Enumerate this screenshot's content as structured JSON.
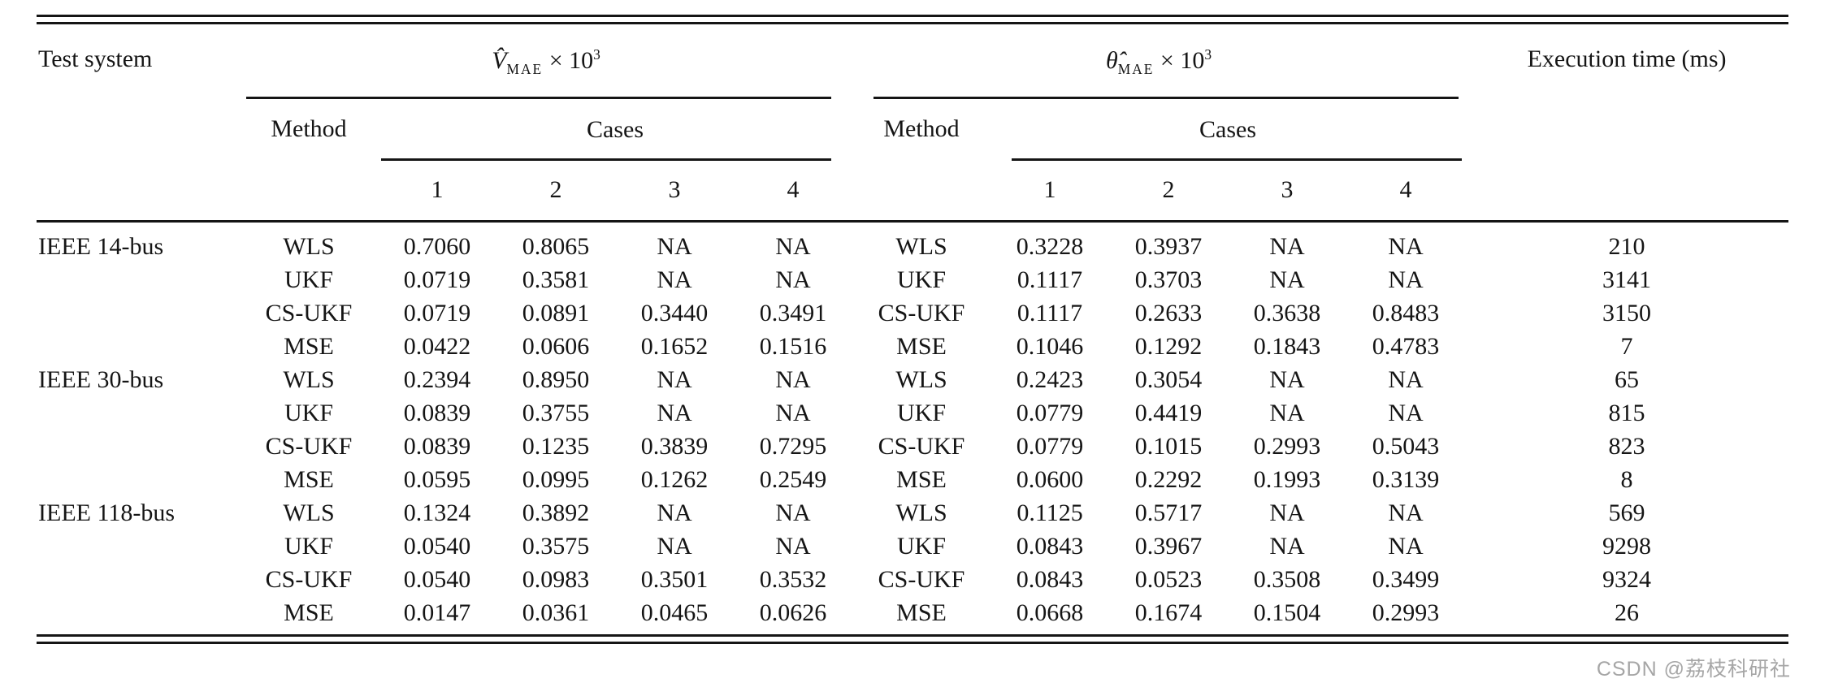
{
  "page": {
    "watermark": "CSDN @荔枝科研社"
  },
  "table": {
    "header": {
      "test_system": "Test system",
      "v_group": {
        "base": "V̂",
        "sub": "MAE",
        "times": " × 10",
        "exp": "3"
      },
      "theta_group": {
        "base": "θ̂",
        "sub": "MAE",
        "times": " × 10",
        "exp": "3"
      },
      "method": "Method",
      "cases": "Cases",
      "case_numbers": [
        "1",
        "2",
        "3",
        "4"
      ],
      "execution_time": "Execution time (ms)"
    },
    "groups": [
      {
        "system": "IEEE 14-bus",
        "rows": [
          {
            "method": "WLS",
            "v": [
              "0.7060",
              "0.8065",
              "NA",
              "NA"
            ],
            "theta": [
              "0.3228",
              "0.3937",
              "NA",
              "NA"
            ],
            "time": "210"
          },
          {
            "method": "UKF",
            "v": [
              "0.0719",
              "0.3581",
              "NA",
              "NA"
            ],
            "theta": [
              "0.1117",
              "0.3703",
              "NA",
              "NA"
            ],
            "time": "3141"
          },
          {
            "method": "CS-UKF",
            "v": [
              "0.0719",
              "0.0891",
              "0.3440",
              "0.3491"
            ],
            "theta": [
              "0.1117",
              "0.2633",
              "0.3638",
              "0.8483"
            ],
            "time": "3150"
          },
          {
            "method": "MSE",
            "v": [
              "0.0422",
              "0.0606",
              "0.1652",
              "0.1516"
            ],
            "theta": [
              "0.1046",
              "0.1292",
              "0.1843",
              "0.4783"
            ],
            "time": "7"
          }
        ]
      },
      {
        "system": "IEEE 30-bus",
        "rows": [
          {
            "method": "WLS",
            "v": [
              "0.2394",
              "0.8950",
              "NA",
              "NA"
            ],
            "theta": [
              "0.2423",
              "0.3054",
              "NA",
              "NA"
            ],
            "time": "65"
          },
          {
            "method": "UKF",
            "v": [
              "0.0839",
              "0.3755",
              "NA",
              "NA"
            ],
            "theta": [
              "0.0779",
              "0.4419",
              "NA",
              "NA"
            ],
            "time": "815"
          },
          {
            "method": "CS-UKF",
            "v": [
              "0.0839",
              "0.1235",
              "0.3839",
              "0.7295"
            ],
            "theta": [
              "0.0779",
              "0.1015",
              "0.2993",
              "0.5043"
            ],
            "time": "823"
          },
          {
            "method": "MSE",
            "v": [
              "0.0595",
              "0.0995",
              "0.1262",
              "0.2549"
            ],
            "theta": [
              "0.0600",
              "0.2292",
              "0.1993",
              "0.3139"
            ],
            "time": "8"
          }
        ]
      },
      {
        "system": "IEEE 118-bus",
        "rows": [
          {
            "method": "WLS",
            "v": [
              "0.1324",
              "0.3892",
              "NA",
              "NA"
            ],
            "theta": [
              "0.1125",
              "0.5717",
              "NA",
              "NA"
            ],
            "time": "569"
          },
          {
            "method": "UKF",
            "v": [
              "0.0540",
              "0.3575",
              "NA",
              "NA"
            ],
            "theta": [
              "0.0843",
              "0.3967",
              "NA",
              "NA"
            ],
            "time": "9298"
          },
          {
            "method": "CS-UKF",
            "v": [
              "0.0540",
              "0.0983",
              "0.3501",
              "0.3532"
            ],
            "theta": [
              "0.0843",
              "0.0523",
              "0.3508",
              "0.3499"
            ],
            "time": "9324"
          },
          {
            "method": "MSE",
            "v": [
              "0.0147",
              "0.0361",
              "0.0465",
              "0.0626"
            ],
            "theta": [
              "0.0668",
              "0.1674",
              "0.1504",
              "0.2993"
            ],
            "time": "26"
          }
        ]
      }
    ]
  }
}
